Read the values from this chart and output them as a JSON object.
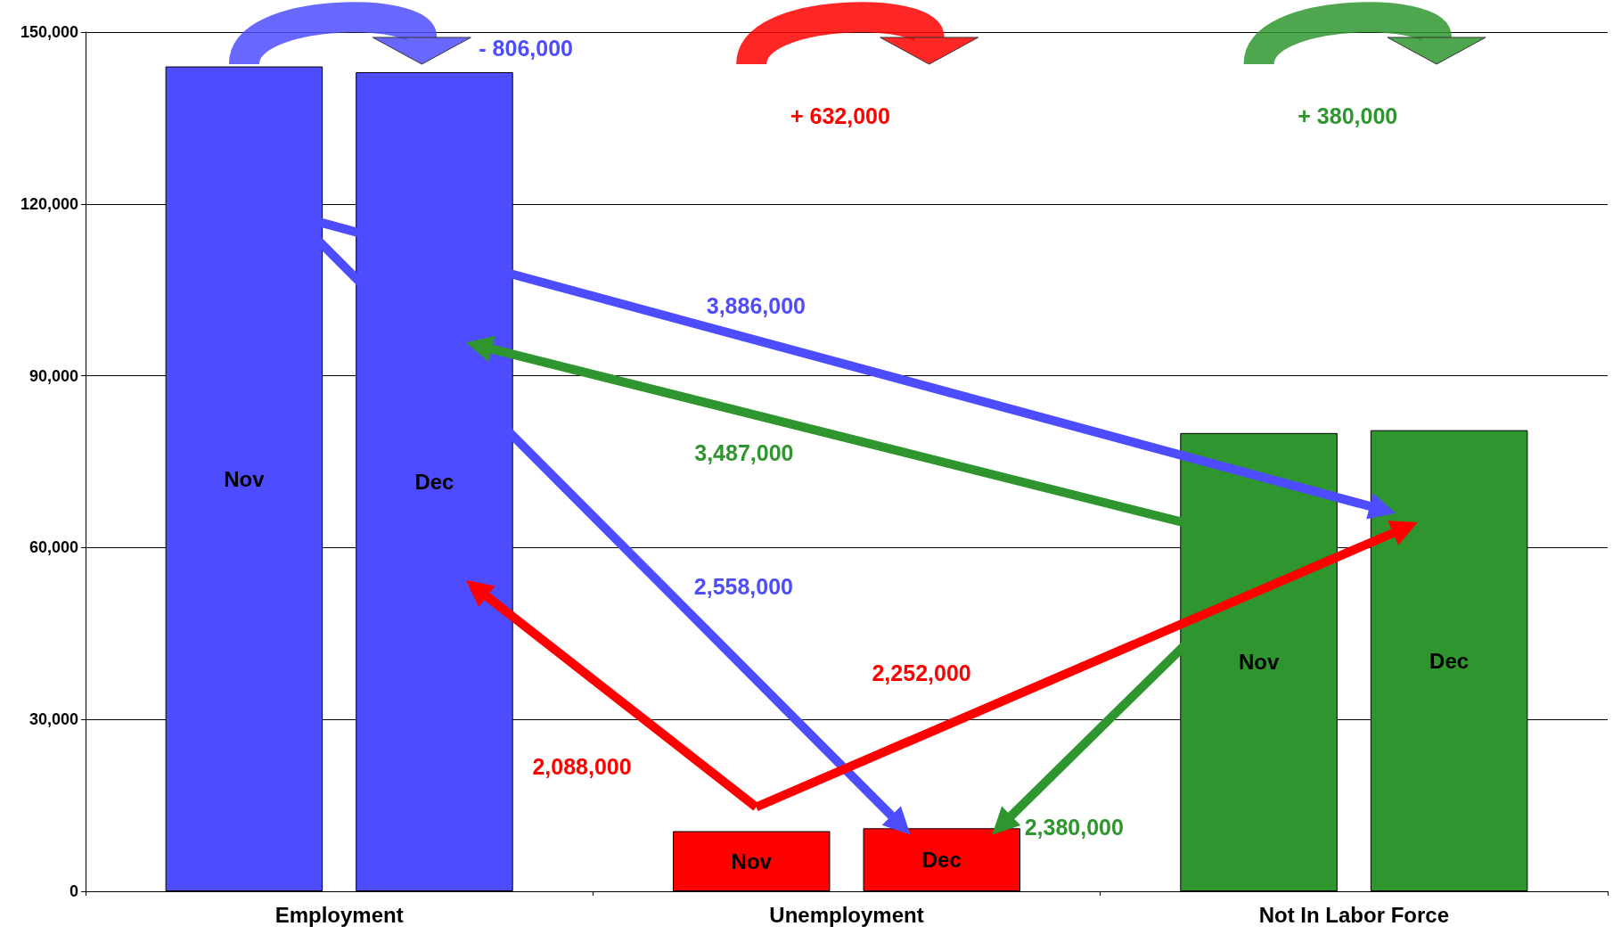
{
  "chart_data": {
    "type": "bar",
    "categories": [
      "Employment",
      "Unemployment",
      "Not In Labor Force"
    ],
    "series": [
      {
        "name": "Nov",
        "colors": [
          "#4d4dff",
          "#ff0000",
          "#2f962f"
        ],
        "values": [
          144000,
          10500,
          80000
        ]
      },
      {
        "name": "Dec",
        "colors": [
          "#4d4dff",
          "#ff0000",
          "#2f962f"
        ],
        "values": [
          143000,
          11000,
          80500
        ]
      }
    ],
    "ylim": [
      0,
      150000
    ],
    "yticks": [
      0,
      {
        "value": 30000,
        "label": "30,000"
      },
      {
        "value": 60000,
        "label": "60,000"
      },
      {
        "value": 90000,
        "label": "90,000"
      },
      {
        "value": 120000,
        "label": "120,000"
      },
      {
        "value": 150000,
        "label": "150,000"
      }
    ],
    "grid": "y",
    "legend": false,
    "annotations": [
      "- 806,000",
      "+ 632,000",
      "+ 380,000",
      "3,886,000",
      "2,558,000",
      "3,487,000",
      "2,380,000",
      "2,088,000",
      "2,252,000"
    ]
  }
}
